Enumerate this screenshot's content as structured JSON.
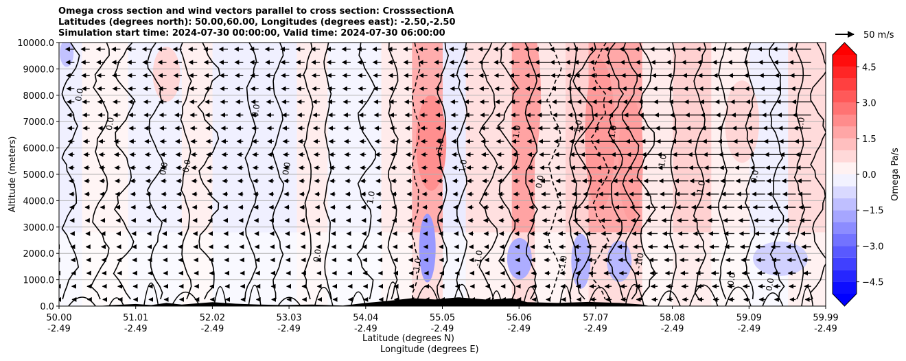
{
  "chart_data": {
    "type": "heatmap",
    "title_lines": [
      "Omega cross section and wind vectors parallel to cross section: CrosssectionA",
      "Latitudes (degrees north): 50.00,60.00, Longitudes (degrees east): -2.50,-2.50",
      "Simulation start time: 2024-07-30 00:00:00, Valid time: 2024-07-30 06:00:00"
    ],
    "ylabel": "Altitude (meters)",
    "xlabel_lat": "Latitude (degrees N)",
    "xlabel_lon": "Longitude (degrees E)",
    "ylim": [
      0,
      10000
    ],
    "y_ticks": [
      "0.0",
      "1000.0",
      "2000.0",
      "3000.0",
      "4000.0",
      "5000.0",
      "6000.0",
      "7000.0",
      "8000.0",
      "9000.0",
      "10000.0"
    ],
    "x_ticks": [
      {
        "lat": "50.00",
        "lon": "-2.49"
      },
      {
        "lat": "51.01",
        "lon": "-2.49"
      },
      {
        "lat": "52.02",
        "lon": "-2.49"
      },
      {
        "lat": "53.03",
        "lon": "-2.49"
      },
      {
        "lat": "54.04",
        "lon": "-2.49"
      },
      {
        "lat": "55.05",
        "lon": "-2.49"
      },
      {
        "lat": "56.06",
        "lon": "-2.49"
      },
      {
        "lat": "57.07",
        "lon": "-2.49"
      },
      {
        "lat": "58.08",
        "lon": "-2.49"
      },
      {
        "lat": "59.09",
        "lon": "-2.49"
      },
      {
        "lat": "59.99",
        "lon": "-2.49"
      }
    ],
    "xlim": [
      50.0,
      59.99
    ],
    "grid": "horizontal",
    "colorbar": {
      "label": "Omega Pa/s",
      "range": [
        -5.0,
        5.0
      ],
      "ticks": [
        "4.5",
        "3.0",
        "1.5",
        "0.0",
        "−1.5",
        "−3.0",
        "−4.5"
      ],
      "tick_values": [
        4.5,
        3.0,
        1.5,
        0.0,
        -1.5,
        -3.0,
        -4.5
      ],
      "cmap": "bwr",
      "extend": "both"
    },
    "vector_key": "50 m/s",
    "contour_labels": [
      "0.0",
      "1.0",
      "-1.0"
    ]
  }
}
